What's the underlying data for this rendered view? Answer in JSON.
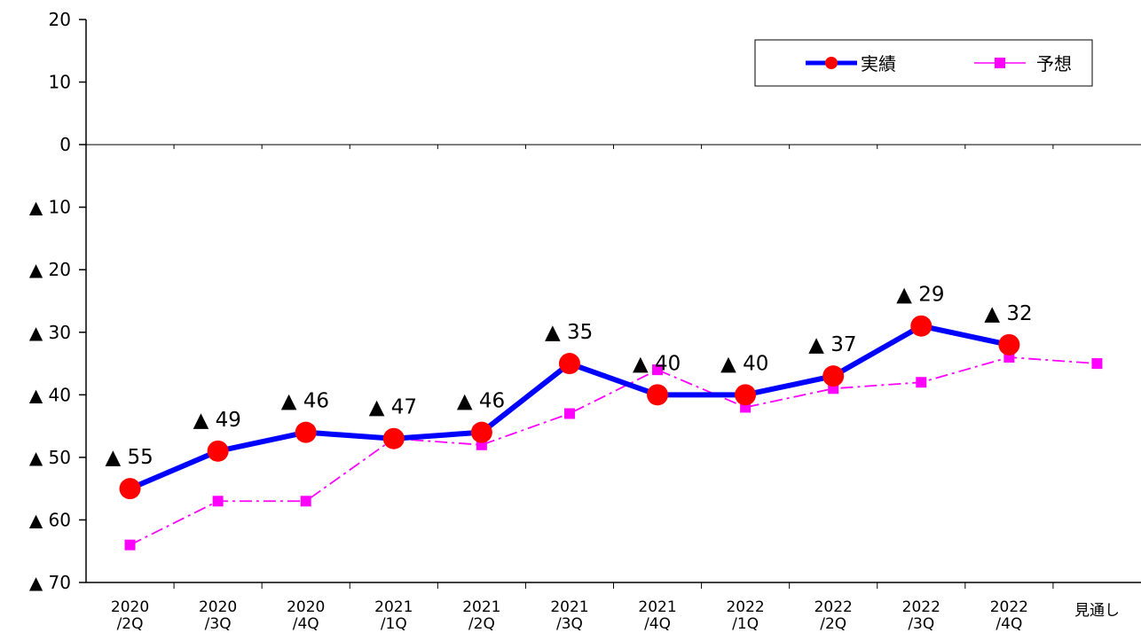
{
  "chart_data": {
    "type": "line",
    "categories": [
      [
        "2020",
        "/2Q"
      ],
      [
        "2020",
        "/3Q"
      ],
      [
        "2020",
        "/4Q"
      ],
      [
        "2021",
        "/1Q"
      ],
      [
        "2021",
        "/2Q"
      ],
      [
        "2021",
        "/3Q"
      ],
      [
        "2021",
        "/4Q"
      ],
      [
        "2022",
        "/1Q"
      ],
      [
        "2022",
        "/2Q"
      ],
      [
        "2022",
        "/3Q"
      ],
      [
        "2022",
        "/4Q"
      ],
      [
        "見通し"
      ]
    ],
    "ylim": [
      -70,
      20
    ],
    "y_ticks": [
      20,
      10,
      0,
      -10,
      -20,
      -30,
      -40,
      -50,
      -60,
      -70
    ],
    "y_tick_labels": [
      "20",
      "10",
      "0",
      "▲ 10",
      "▲ 20",
      "▲ 30",
      "▲ 40",
      "▲ 50",
      "▲ 60",
      "▲ 70"
    ],
    "grid": false,
    "legend_position": "top-right",
    "series": [
      {
        "name": "実績",
        "color": "#0000ff",
        "marker_color": "#ff0000",
        "marker": "circle",
        "line_style": "solid",
        "values": [
          -55,
          -49,
          -46,
          -47,
          -46,
          -35,
          -40,
          -40,
          -37,
          -29,
          -32,
          null
        ],
        "data_labels": [
          "▲ 55",
          "▲ 49",
          "▲ 46",
          "▲ 47",
          "▲ 46",
          "▲ 35",
          "▲ 40",
          "▲ 40",
          "▲ 37",
          "▲ 29",
          "▲ 32",
          ""
        ]
      },
      {
        "name": "予想",
        "color": "#ff00ff",
        "marker_color": "#ff00ff",
        "marker": "square",
        "line_style": "dash-dot",
        "values": [
          -64,
          -57,
          -57,
          -47,
          -48,
          -43,
          -36,
          -42,
          -39,
          -38,
          -34,
          -35
        ]
      }
    ]
  }
}
